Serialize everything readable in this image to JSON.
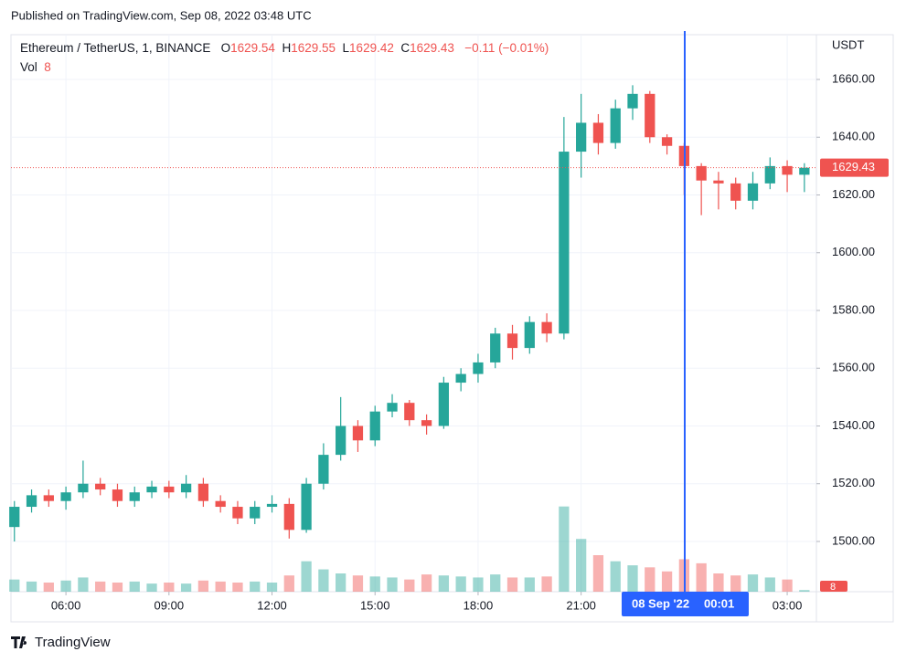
{
  "page": {
    "published": "Published on TradingView.com, Sep 08, 2022 03:48 UTC",
    "brand": "TradingView"
  },
  "chart_data": {
    "type": "candlestick",
    "title": "Ethereum / TetherUS, 1, BINANCE",
    "unit": "USDT",
    "ohlc_legend": [
      {
        "label": "O",
        "value": 1629.54
      },
      {
        "label": "H",
        "value": 1629.55
      },
      {
        "label": "L",
        "value": 1629.42
      },
      {
        "label": "C",
        "value": 1629.43
      }
    ],
    "change_label": "−0.11 (−0.01%)",
    "volume_label": "Vol",
    "x": [
      4.5,
      5,
      5.5,
      6,
      6.5,
      7,
      7.5,
      8,
      8.5,
      9,
      9.5,
      10,
      10.5,
      11,
      11.5,
      12,
      12.5,
      13,
      13.5,
      14,
      14.5,
      15,
      15.5,
      16,
      16.5,
      17,
      17.5,
      18,
      18.5,
      19,
      19.5,
      20,
      20.5,
      21,
      21.5,
      22,
      22.5,
      23,
      23.5,
      24,
      24.5,
      25,
      25.5,
      26,
      26.5,
      27,
      27.5
    ],
    "open": [
      1505,
      1512,
      1516,
      1514,
      1517,
      1520,
      1518,
      1514,
      1517,
      1519,
      1517,
      1520,
      1514,
      1512,
      1508,
      1512,
      1513,
      1504,
      1520,
      1530,
      1540,
      1535,
      1545,
      1548,
      1542,
      1540,
      1555,
      1558,
      1562,
      1572,
      1567,
      1576,
      1572,
      1635,
      1645,
      1638,
      1650,
      1655,
      1640,
      1637,
      1630,
      1625,
      1624,
      1618,
      1624,
      1630,
      1627
    ],
    "high": [
      1514,
      1518,
      1518,
      1519,
      1528,
      1522,
      1520,
      1519,
      1521,
      1521,
      1523,
      1522,
      1516,
      1514,
      1514,
      1516,
      1515,
      1522,
      1534,
      1550,
      1542,
      1547,
      1551,
      1549,
      1544,
      1557,
      1560,
      1565,
      1574,
      1575,
      1578,
      1579,
      1647,
      1655,
      1648,
      1653,
      1658,
      1656,
      1641,
      1638,
      1631,
      1628,
      1626,
      1628,
      1633,
      1632,
      1631
    ],
    "low": [
      1500,
      1510,
      1512,
      1511,
      1515,
      1516,
      1512,
      1512,
      1515,
      1515,
      1515,
      1512,
      1510,
      1506,
      1506,
      1510,
      1501,
      1503,
      1518,
      1528,
      1531,
      1533,
      1543,
      1540,
      1537,
      1539,
      1552,
      1555,
      1560,
      1563,
      1565,
      1569,
      1570,
      1626,
      1634,
      1636,
      1646,
      1638,
      1634,
      1620,
      1613,
      1615,
      1615,
      1615,
      1622,
      1621,
      1621
    ],
    "close": [
      1512,
      1516,
      1514,
      1517,
      1520,
      1518,
      1514,
      1517,
      1519,
      1517,
      1520,
      1514,
      1512,
      1508,
      1512,
      1513,
      1504,
      1520,
      1530,
      1540,
      1535,
      1545,
      1548,
      1542,
      1540,
      1555,
      1558,
      1562,
      1572,
      1567,
      1576,
      1572,
      1635,
      1645,
      1638,
      1650,
      1655,
      1640,
      1637,
      1630,
      1625,
      1624,
      1618,
      1624,
      1630,
      1627,
      1629.43
    ],
    "volume": [
      60,
      50,
      45,
      55,
      70,
      50,
      45,
      50,
      40,
      45,
      40,
      55,
      50,
      45,
      50,
      45,
      80,
      150,
      110,
      90,
      80,
      75,
      70,
      60,
      85,
      80,
      75,
      70,
      85,
      70,
      70,
      75,
      420,
      260,
      180,
      150,
      130,
      120,
      100,
      160,
      140,
      90,
      80,
      85,
      70,
      60,
      8
    ],
    "up_color": "#26a69a",
    "down_color": "#ef5350",
    "crosshair_color": "#2962ff",
    "xlim": [
      4.4,
      27.85
    ],
    "xticks": [
      {
        "value": 6,
        "label": "06:00"
      },
      {
        "value": 9,
        "label": "09:00"
      },
      {
        "value": 12,
        "label": "12:00"
      },
      {
        "value": 15,
        "label": "15:00"
      },
      {
        "value": 18,
        "label": "18:00"
      },
      {
        "value": 21,
        "label": "21:00"
      },
      {
        "value": 27,
        "label": "03:00"
      }
    ],
    "ylim": [
      1482.6,
      1675.5
    ],
    "yticks": [
      {
        "value": 1500,
        "label": "1500.00"
      },
      {
        "value": 1520,
        "label": "1520.00"
      },
      {
        "value": 1540,
        "label": "1540.00"
      },
      {
        "value": 1560,
        "label": "1560.00"
      },
      {
        "value": 1580,
        "label": "1580.00"
      },
      {
        "value": 1600,
        "label": "1600.00"
      },
      {
        "value": 1620,
        "label": "1620.00"
      },
      {
        "value": 1640,
        "label": "1640.00"
      },
      {
        "value": 1660,
        "label": "1660.00"
      }
    ],
    "vlim": [
      0,
      450
    ],
    "crosshair": {
      "x": 24.0167,
      "date": "08 Sep '22",
      "time": "00:01"
    },
    "grid": true
  }
}
